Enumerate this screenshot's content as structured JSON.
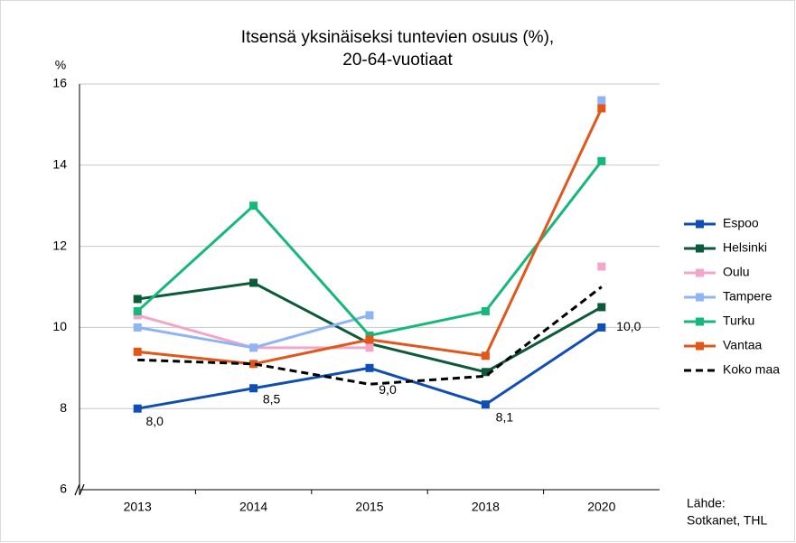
{
  "chart_data": {
    "type": "line",
    "title": "Itsensä yksinäiseksi tuntevien osuus (%),",
    "subtitle": "20-64-vuotiaat",
    "y_label": "%",
    "source": [
      "Lähde:",
      "Sotkanet, THL"
    ],
    "categories": [
      "2013",
      "2014",
      "2015",
      "2018",
      "2020"
    ],
    "series": [
      {
        "name": "Espoo",
        "color": "#0f4fb3",
        "values": [
          8.0,
          8.5,
          9.0,
          8.1,
          10.0
        ],
        "value_labels": [
          "8,0",
          "8,5",
          "9,0",
          "8,1",
          "10,0"
        ]
      },
      {
        "name": "Helsinki",
        "color": "#0b5a3a",
        "values": [
          10.7,
          11.1,
          9.6,
          8.9,
          10.5
        ]
      },
      {
        "name": "Oulu",
        "color": "#f4a6c8",
        "values": [
          10.3,
          9.5,
          9.5,
          null,
          11.5
        ]
      },
      {
        "name": "Tampere",
        "color": "#8fb4f5",
        "values": [
          10.0,
          9.5,
          10.3,
          null,
          15.6
        ]
      },
      {
        "name": "Turku",
        "color": "#14b87a",
        "values": [
          10.4,
          13.0,
          9.8,
          10.4,
          14.1
        ]
      },
      {
        "name": "Vantaa",
        "color": "#e2561a",
        "values": [
          9.4,
          9.1,
          9.7,
          9.3,
          15.4
        ]
      },
      {
        "name": "Koko maa",
        "color": "#000000",
        "dashed": true,
        "markers": false,
        "values": [
          9.2,
          9.1,
          8.6,
          8.8,
          11.0
        ]
      }
    ],
    "ylim": [
      6,
      16
    ],
    "yticks": [
      6,
      8,
      10,
      12,
      14,
      16
    ],
    "grid": true,
    "legend": "right"
  }
}
